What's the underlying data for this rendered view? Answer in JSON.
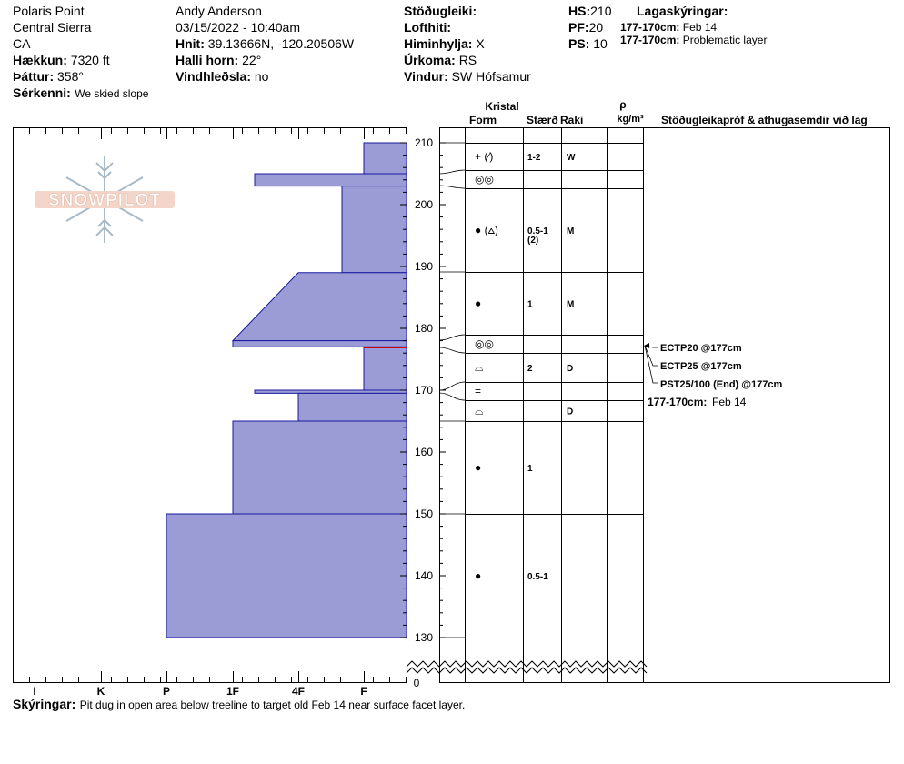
{
  "header": {
    "site": "Polaris Point",
    "range": "Central Sierra",
    "state": "CA",
    "elevation_label": "Hækkun:",
    "elevation_value": "7320 ft",
    "aspect_label": "Þáttur:",
    "aspect_value": "358°",
    "feature_label": "Sérkenni:",
    "feature_value": "We skied slope",
    "observer": "Andy Anderson",
    "datetime": "03/15/2022 - 10:40am",
    "coords_label": "Hnit:",
    "coords_value": "39.13666N, -120.20506W",
    "slope_label": "Halli horn:",
    "slope_value": "22°",
    "wind_loading_label": "Vindhleðsla:",
    "wind_loading_value": "no",
    "stability_label": "Stöðugleiki:",
    "stability_value": "",
    "air_temp_label": "Lofthiti:",
    "air_temp_value": "",
    "sky_label": "Himinhylja:",
    "sky_value": "X",
    "precip_label": "Úrkoma:",
    "precip_value": "RS",
    "wind_label": "Vindur:",
    "wind_value": "SW Hófsamur",
    "hs_label": "HS:",
    "hs_value": "210",
    "pf_label": "PF:",
    "pf_value": "20",
    "ps_label": "PS:",
    "ps_value": "10",
    "layers_legend_title": "Lagaskýringar:",
    "layers_legend": [
      {
        "range": "177-170cm:",
        "text": "Feb 14"
      },
      {
        "range": "177-170cm:",
        "text": "Problematic layer"
      }
    ]
  },
  "logo_text": "SNOWPILOT",
  "columns": {
    "crystal": "Kristal",
    "form": "Form",
    "size": "Stærð",
    "moisture": "Raki",
    "density_symbol": "ρ",
    "density_unit": "kg/m³",
    "tests": "Stöðugleikapróf & athugasemdir við lag"
  },
  "hardness_ticks": [
    "I",
    "K",
    "P",
    "1F",
    "4F",
    "F"
  ],
  "height_ticks": [
    "210",
    "200",
    "190",
    "180",
    "170",
    "160",
    "150",
    "140",
    "130"
  ],
  "bottom_height_label": "0",
  "chart_data": {
    "type": "snow_profile",
    "hardness_scale": [
      "F",
      "4F",
      "1F",
      "P",
      "K",
      "I"
    ],
    "height_range_cm": [
      130,
      210
    ],
    "layers": [
      {
        "top": 210,
        "bottom": 205,
        "hardness_top": "F",
        "hardness_bottom": "F"
      },
      {
        "top": 205,
        "bottom": 203,
        "hardness_top": "1F+",
        "hardness_bottom": "1F+"
      },
      {
        "top": 203,
        "bottom": 189,
        "hardness_top": "F-4F",
        "hardness_bottom": "F-4F"
      },
      {
        "top": 189,
        "bottom": 178,
        "hardness_top": "4F+",
        "hardness_bottom": "1F"
      },
      {
        "top": 178,
        "bottom": 177,
        "hardness_top": "1F",
        "hardness_bottom": "1F"
      },
      {
        "top": 177,
        "bottom": 170,
        "hardness_top": "F",
        "hardness_bottom": "F"
      },
      {
        "top": 170,
        "bottom": 169.5,
        "hardness_top": "1F+",
        "hardness_bottom": "1F+"
      },
      {
        "top": 169.5,
        "bottom": 165,
        "hardness_top": "4F",
        "hardness_bottom": "4F"
      },
      {
        "top": 165,
        "bottom": 150,
        "hardness_top": "1F",
        "hardness_bottom": "1F"
      },
      {
        "top": 150,
        "bottom": 130,
        "hardness_top": "P",
        "hardness_bottom": "P"
      }
    ],
    "rows": [
      {
        "form": "+ (⁄)",
        "size": "1-2",
        "moisture": "W"
      },
      {
        "form": "◎◎",
        "size": "",
        "moisture": ""
      },
      {
        "form": "● (⩟)",
        "size": "0.5-1",
        "size2": "(2)",
        "moisture": "M"
      },
      {
        "form": "●",
        "size": "1",
        "moisture": "M"
      },
      {
        "form": "◎◎",
        "size": "",
        "moisture": ""
      },
      {
        "form": "⌓",
        "size": "2",
        "moisture": "D"
      },
      {
        "form": "=",
        "size": "",
        "moisture": ""
      },
      {
        "form": "⌓",
        "size": "",
        "moisture": "D"
      },
      {
        "form": "●",
        "size": "1",
        "moisture": ""
      },
      {
        "form": "●",
        "size": "0.5-1",
        "moisture": ""
      }
    ],
    "tests": [
      "ECTP20 @177cm",
      "ECTP25 @177cm",
      "PST25/100 (End) @177cm"
    ],
    "layer_note_range": "177-170cm:",
    "layer_note_text": "Feb 14"
  },
  "footer": {
    "label": "Skýringar:",
    "text": "Pit dug in open area below treeline to target old Feb 14 near surface facet layer."
  }
}
